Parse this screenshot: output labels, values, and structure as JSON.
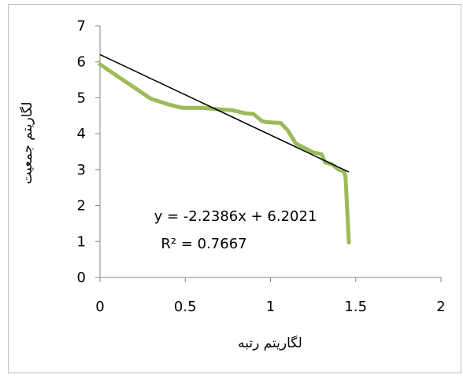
{
  "chart_data": {
    "type": "line",
    "title": "",
    "xlabel": "لگاریتم رتبه",
    "ylabel": "لگاریتم جمعیت",
    "xlim": [
      0,
      2
    ],
    "ylim": [
      0,
      7
    ],
    "x_ticks": [
      0,
      0.5,
      1,
      1.5,
      2
    ],
    "y_ticks": [
      0,
      1,
      2,
      3,
      4,
      5,
      6,
      7
    ],
    "x_tick_labels": [
      "0",
      "0.5",
      "1",
      "1.5",
      "2"
    ],
    "y_tick_labels": [
      "0",
      "1",
      "2",
      "3",
      "4",
      "5",
      "6",
      "7"
    ],
    "grid": false,
    "legend": "none",
    "series": [
      {
        "color": "#9bbb59",
        "x": [
          0,
          0.15,
          0.3,
          0.4,
          0.48,
          0.6,
          0.7,
          0.78,
          0.85,
          0.9,
          0.95,
          0.98,
          1.02,
          1.06,
          1.1,
          1.15,
          1.2,
          1.25,
          1.3,
          1.32,
          1.36,
          1.4,
          1.43,
          1.44,
          1.46
        ],
        "y": [
          5.93,
          5.45,
          4.97,
          4.82,
          4.72,
          4.72,
          4.68,
          4.65,
          4.57,
          4.55,
          4.35,
          4.32,
          4.31,
          4.3,
          4.1,
          3.72,
          3.6,
          3.48,
          3.43,
          3.2,
          3.15,
          3.0,
          2.95,
          2.8,
          0.97
        ]
      }
    ],
    "trendline": {
      "type": "linear",
      "slope": -2.2386,
      "intercept": 6.2021,
      "x_range": [
        0,
        1.46
      ],
      "color": "#000000",
      "equation": "y = -2.2386x + 6.2021",
      "r_squared": "R² = 0.7667"
    }
  }
}
